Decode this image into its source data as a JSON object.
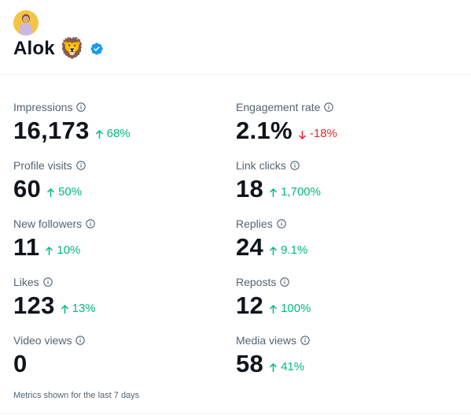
{
  "profile": {
    "name": "Alok",
    "emoji": "🦁",
    "verified_icon": "verified-badge-icon",
    "avatar_icon": "user-avatar"
  },
  "colors": {
    "up": "#00ba7c",
    "down": "#f4212e",
    "verified": "#1d9bf0",
    "label": "#536471"
  },
  "metrics_left": [
    {
      "label": "Impressions",
      "value": "16,173",
      "change": "68%",
      "direction": "up"
    },
    {
      "label": "Profile visits",
      "value": "60",
      "change": "50%",
      "direction": "up"
    },
    {
      "label": "New followers",
      "value": "11",
      "change": "10%",
      "direction": "up"
    },
    {
      "label": "Likes",
      "value": "123",
      "change": "13%",
      "direction": "up"
    },
    {
      "label": "Video views",
      "value": "0",
      "change": "",
      "direction": "none"
    }
  ],
  "metrics_right": [
    {
      "label": "Engagement rate",
      "value": "2.1%",
      "change": "-18%",
      "direction": "down"
    },
    {
      "label": "Link clicks",
      "value": "18",
      "change": "1,700%",
      "direction": "up"
    },
    {
      "label": "Replies",
      "value": "24",
      "change": "9.1%",
      "direction": "up"
    },
    {
      "label": "Reposts",
      "value": "12",
      "change": "100%",
      "direction": "up"
    },
    {
      "label": "Media views",
      "value": "58",
      "change": "41%",
      "direction": "up"
    }
  ],
  "footer": {
    "text": "Metrics shown for the last 7 days"
  }
}
